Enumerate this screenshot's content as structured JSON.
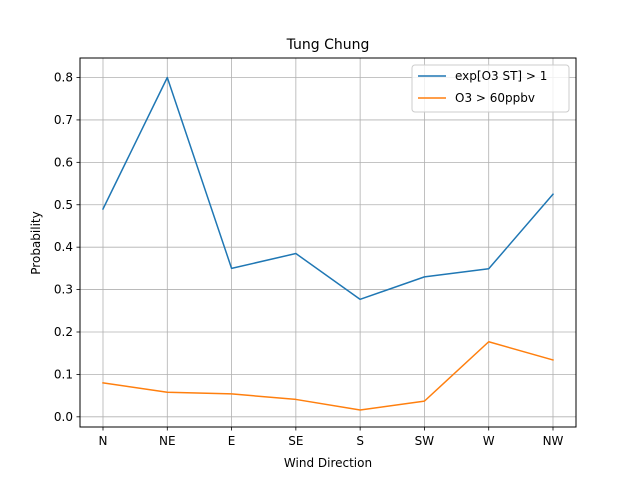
{
  "chart_data": {
    "type": "line",
    "title": "Tung Chung",
    "xlabel": "Wind Direction",
    "ylabel": "Probability",
    "categories": [
      "N",
      "NE",
      "E",
      "SE",
      "S",
      "SW",
      "W",
      "NW"
    ],
    "ylim": [
      -0.024,
      0.846
    ],
    "yticks": [
      0.0,
      0.1,
      0.2,
      0.3,
      0.4,
      0.5,
      0.6,
      0.7,
      0.8
    ],
    "ytick_labels": [
      "0.0",
      "0.1",
      "0.2",
      "0.3",
      "0.4",
      "0.5",
      "0.6",
      "0.7",
      "0.8"
    ],
    "grid": true,
    "legend_position": "top-right",
    "series": [
      {
        "name": "exp[O3 ST] > 1",
        "color": "#1f77b4",
        "values": [
          0.49,
          0.8,
          0.35,
          0.385,
          0.277,
          0.33,
          0.349,
          0.525
        ]
      },
      {
        "name": "O3 > 60ppbv",
        "color": "#ff7f0e",
        "values": [
          0.08,
          0.058,
          0.054,
          0.041,
          0.016,
          0.037,
          0.177,
          0.134
        ]
      }
    ]
  }
}
